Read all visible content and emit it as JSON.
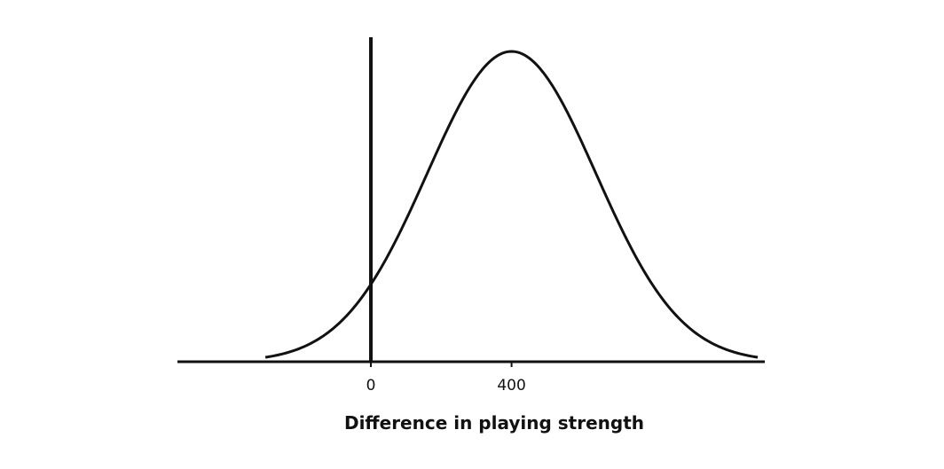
{
  "chart_data": {
    "type": "line",
    "title": "",
    "xlabel": "Difference in playing strength",
    "ylabel": "",
    "x_ticks": [
      0,
      400
    ],
    "x_tick_labels": [
      "0",
      "400"
    ],
    "xlim": [
      -550,
      1120
    ],
    "ylim": [
      0,
      1
    ],
    "grid": false,
    "legend": "none",
    "series": [
      {
        "distribution": "normal",
        "mean": 400,
        "sd": 240,
        "x_start": -300,
        "x_end": 1100
      }
    ],
    "colors": {
      "line": "#111111",
      "background": "#ffffff"
    }
  }
}
